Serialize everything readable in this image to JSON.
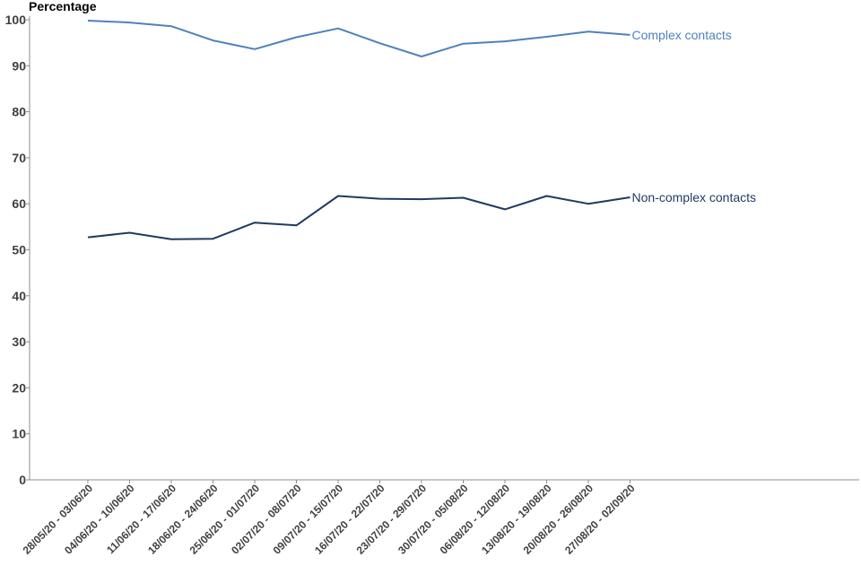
{
  "chart_data": {
    "type": "line",
    "title": "",
    "xlabel": "",
    "ylabel": "Percentage",
    "ylim": [
      0,
      100
    ],
    "yticks": [
      0,
      10,
      20,
      30,
      40,
      50,
      60,
      70,
      80,
      90,
      100
    ],
    "grid": false,
    "categories": [
      "28/05/20 - 03/06/20",
      "04/06/20 - 10/06/20",
      "11/06/20 - 17/06/20",
      "18/06/20 - 24/06/20",
      "25/06/20 - 01/07/20",
      "02/07/20 - 08/07/20",
      "09/07/20 - 15/07/20",
      "16/07/20 - 22/07/20",
      "23/07/20 - 29/07/20",
      "30/07/20 - 05/08/20",
      "06/08/20 - 12/08/20",
      "13/08/20 - 19/08/20",
      "20/08/20 - 26/08/20",
      "27/08/20 - 02/09/20"
    ],
    "series": [
      {
        "name": "Complex contacts",
        "color": "#4f81bd",
        "values": [
          99.8,
          99.4,
          98.6,
          95.5,
          93.6,
          96.2,
          98.1,
          94.9,
          92.0,
          94.8,
          95.3,
          96.3,
          97.4,
          96.7
        ]
      },
      {
        "name": "Non-complex contacts",
        "color": "#1f3a5f",
        "values": [
          52.7,
          53.7,
          52.3,
          52.4,
          55.9,
          55.3,
          61.7,
          61.1,
          61.0,
          61.3,
          58.8,
          61.7,
          60.0,
          61.4
        ]
      }
    ]
  }
}
